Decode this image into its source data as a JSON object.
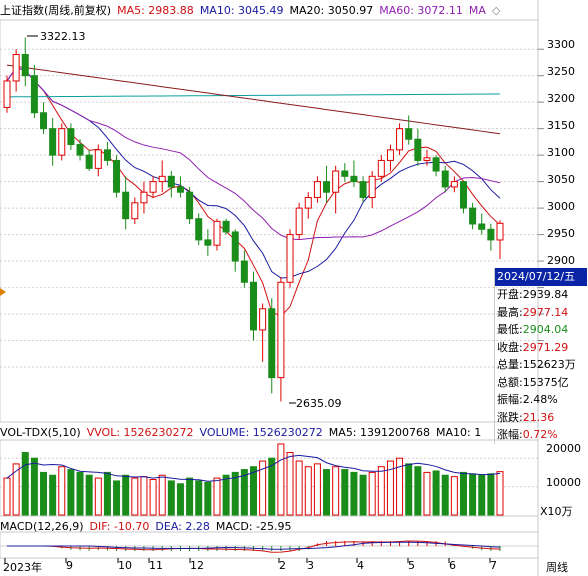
{
  "main_header": {
    "title": "上证指数(周线,前复权)",
    "ma5": "MA5: 2983.88",
    "ma10": "MA10: 3045.49",
    "ma20": "MA20: 3050.97",
    "ma60": "MA60: 3072.11",
    "ma_more": "MA"
  },
  "vol_header": {
    "title": "VOL-TDX(5,10)",
    "vvol": "VVOL: 1526230272",
    "volume": "VOLUME: 1526230272",
    "ma5": "MA5: 1391200768",
    "ma10": "MA10: 1"
  },
  "macd_header": {
    "title": "MACD(12,26,9)",
    "dif": "DIF: -10.70",
    "dea": "DEA: 2.28",
    "macd": "MACD: -25.95"
  },
  "price_axis": [
    "3300",
    "3250",
    "3200",
    "3150",
    "3100",
    "3050",
    "3000",
    "2950",
    "2900"
  ],
  "vol_axis": [
    "20000",
    "10000"
  ],
  "vol_unit": "X10万",
  "period_label": "周线",
  "annotations": {
    "high": "3322.13",
    "low": "2635.09"
  },
  "info_box": {
    "date": "2024/07/12/五",
    "rows": [
      {
        "label": "开盘",
        "value": "2939.84"
      },
      {
        "label": "最高",
        "value": "2977.14"
      },
      {
        "label": "最低",
        "value": "2904.04"
      },
      {
        "label": "收盘",
        "value": "2971.29"
      },
      {
        "label": "总量",
        "value": "152623万"
      },
      {
        "label": "总额",
        "value": "15375亿"
      },
      {
        "label": "振幅",
        "value": "2.48%"
      },
      {
        "label": "涨跌",
        "value": "21.36"
      },
      {
        "label": "涨幅",
        "value": "0.72%"
      }
    ]
  },
  "x_labels": [
    "2023年",
    "9",
    "10",
    "11",
    "12",
    "2",
    "3",
    "4",
    "5",
    "6",
    "7"
  ],
  "colors": {
    "up": "#e00000",
    "down": "#1a8c1a",
    "ma5": "#d01010",
    "ma10": "#1a1aa0",
    "ma20": "#9020b0",
    "ma60": "#8b1a1a",
    "ma_long": "#0aa0a0",
    "info": "#0a24a5"
  },
  "chart_data": {
    "type": "candlestick",
    "candles": [
      [
        3190,
        3250,
        3180,
        3240
      ],
      [
        3240,
        3300,
        3220,
        3290
      ],
      [
        3290,
        3322,
        3230,
        3250
      ],
      [
        3250,
        3270,
        3170,
        3180
      ],
      [
        3180,
        3200,
        3140,
        3150
      ],
      [
        3150,
        3170,
        3080,
        3100
      ],
      [
        3100,
        3160,
        3090,
        3150
      ],
      [
        3150,
        3160,
        3110,
        3120
      ],
      [
        3120,
        3130,
        3090,
        3100
      ],
      [
        3100,
        3110,
        3070,
        3075
      ],
      [
        3075,
        3120,
        3060,
        3110
      ],
      [
        3110,
        3125,
        3080,
        3090
      ],
      [
        3090,
        3100,
        3020,
        3030
      ],
      [
        3030,
        3060,
        2960,
        2980
      ],
      [
        2980,
        3020,
        2970,
        3010
      ],
      [
        3010,
        3050,
        2990,
        3030
      ],
      [
        3030,
        3060,
        3020,
        3050
      ],
      [
        3050,
        3090,
        3030,
        3060
      ],
      [
        3060,
        3070,
        3020,
        3040
      ],
      [
        3040,
        3060,
        3020,
        3030
      ],
      [
        3030,
        3040,
        2970,
        2980
      ],
      [
        2980,
        2990,
        2930,
        2940
      ],
      [
        2940,
        2960,
        2910,
        2930
      ],
      [
        2930,
        2980,
        2920,
        2975
      ],
      [
        2975,
        2980,
        2950,
        2955
      ],
      [
        2955,
        2960,
        2880,
        2900
      ],
      [
        2900,
        2920,
        2850,
        2860
      ],
      [
        2860,
        2880,
        2750,
        2770
      ],
      [
        2770,
        2820,
        2710,
        2810
      ],
      [
        2810,
        2830,
        2650,
        2680
      ],
      [
        2680,
        2870,
        2635,
        2860
      ],
      [
        2860,
        2960,
        2850,
        2950
      ],
      [
        2950,
        3010,
        2940,
        3000
      ],
      [
        3000,
        3030,
        2980,
        3020
      ],
      [
        3020,
        3060,
        3010,
        3050
      ],
      [
        3050,
        3080,
        3010,
        3030
      ],
      [
        3030,
        3080,
        2990,
        3070
      ],
      [
        3070,
        3085,
        3050,
        3060
      ],
      [
        3060,
        3090,
        3040,
        3050
      ],
      [
        3050,
        3060,
        3010,
        3020
      ],
      [
        3020,
        3070,
        3000,
        3060
      ],
      [
        3060,
        3100,
        3050,
        3090
      ],
      [
        3090,
        3120,
        3070,
        3110
      ],
      [
        3110,
        3160,
        3100,
        3150
      ],
      [
        3150,
        3175,
        3120,
        3130
      ],
      [
        3130,
        3150,
        3080,
        3090
      ],
      [
        3090,
        3110,
        3080,
        3095
      ],
      [
        3095,
        3100,
        3060,
        3070
      ],
      [
        3070,
        3080,
        3030,
        3040
      ],
      [
        3040,
        3060,
        3030,
        3050
      ],
      [
        3050,
        3050,
        2990,
        3000
      ],
      [
        3000,
        3010,
        2960,
        2970
      ],
      [
        2970,
        2990,
        2950,
        2960
      ],
      [
        2960,
        2970,
        2920,
        2940
      ],
      [
        2939.84,
        2977.14,
        2904.04,
        2971.29
      ]
    ],
    "volumes": [
      13000,
      18000,
      22000,
      20000,
      15000,
      14000,
      17000,
      16000,
      15000,
      14000,
      13000,
      15000,
      12000,
      14000,
      13000,
      13500,
      12500,
      14000,
      12000,
      11000,
      13000,
      12000,
      11500,
      13000,
      14000,
      15000,
      16000,
      17000,
      19000,
      20000,
      25000,
      22000,
      19000,
      17000,
      18000,
      16000,
      17000,
      16000,
      15000,
      14000,
      15000,
      17000,
      19000,
      20000,
      18000,
      17000,
      15000,
      15500,
      14000,
      13500,
      15000,
      14500,
      14000,
      14500,
      15262
    ],
    "ylim": [
      2600,
      3340
    ],
    "vol_ylim": [
      0,
      25000
    ]
  }
}
